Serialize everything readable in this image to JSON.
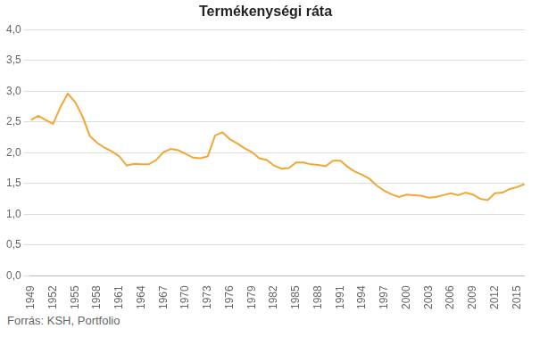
{
  "chart_data": {
    "type": "line",
    "title": "Termékenységi ráta",
    "source": "Forrás: KSH, Portfolio",
    "categories": [
      "1949",
      null,
      null,
      "1952",
      null,
      null,
      "1955",
      null,
      null,
      "1958",
      null,
      null,
      "1961",
      null,
      null,
      "1964",
      null,
      null,
      "1967",
      null,
      null,
      "1970",
      null,
      null,
      "1973",
      null,
      null,
      "1976",
      null,
      null,
      "1979",
      null,
      null,
      "1982",
      null,
      null,
      "1985",
      null,
      null,
      "1988",
      null,
      null,
      "1991",
      null,
      null,
      "1994",
      null,
      null,
      "1997",
      null,
      null,
      "2000",
      null,
      null,
      "2003",
      null,
      null,
      "2006",
      null,
      null,
      "2009",
      null,
      null,
      "2012",
      null,
      null,
      "2015",
      null
    ],
    "values": [
      2.53,
      2.6,
      2.53,
      2.47,
      2.74,
      2.96,
      2.82,
      2.59,
      2.27,
      2.16,
      2.08,
      2.02,
      1.94,
      1.79,
      1.82,
      1.81,
      1.81,
      1.88,
      2.01,
      2.06,
      2.04,
      1.98,
      1.92,
      1.91,
      1.94,
      2.28,
      2.33,
      2.22,
      2.15,
      2.07,
      2.01,
      1.91,
      1.88,
      1.79,
      1.74,
      1.75,
      1.84,
      1.84,
      1.81,
      1.8,
      1.78,
      1.87,
      1.87,
      1.77,
      1.69,
      1.64,
      1.57,
      1.46,
      1.38,
      1.32,
      1.28,
      1.32,
      1.31,
      1.3,
      1.27,
      1.28,
      1.31,
      1.34,
      1.31,
      1.35,
      1.32,
      1.25,
      1.23,
      1.34,
      1.35,
      1.41,
      1.44,
      1.49
    ],
    "color": "#f2a735",
    "ylim": [
      0,
      4
    ],
    "yticks": [
      {
        "value": 0,
        "label": "0,0"
      },
      {
        "value": 0.5,
        "label": "0,5"
      },
      {
        "value": 1,
        "label": "1,0"
      },
      {
        "value": 1.5,
        "label": "1,5"
      },
      {
        "value": 2,
        "label": "2,0"
      },
      {
        "value": 2.5,
        "label": "2,5"
      },
      {
        "value": 3,
        "label": "3,0"
      },
      {
        "value": 3.5,
        "label": "3,5"
      },
      {
        "value": 4,
        "label": "4,0"
      }
    ],
    "grid": true
  }
}
